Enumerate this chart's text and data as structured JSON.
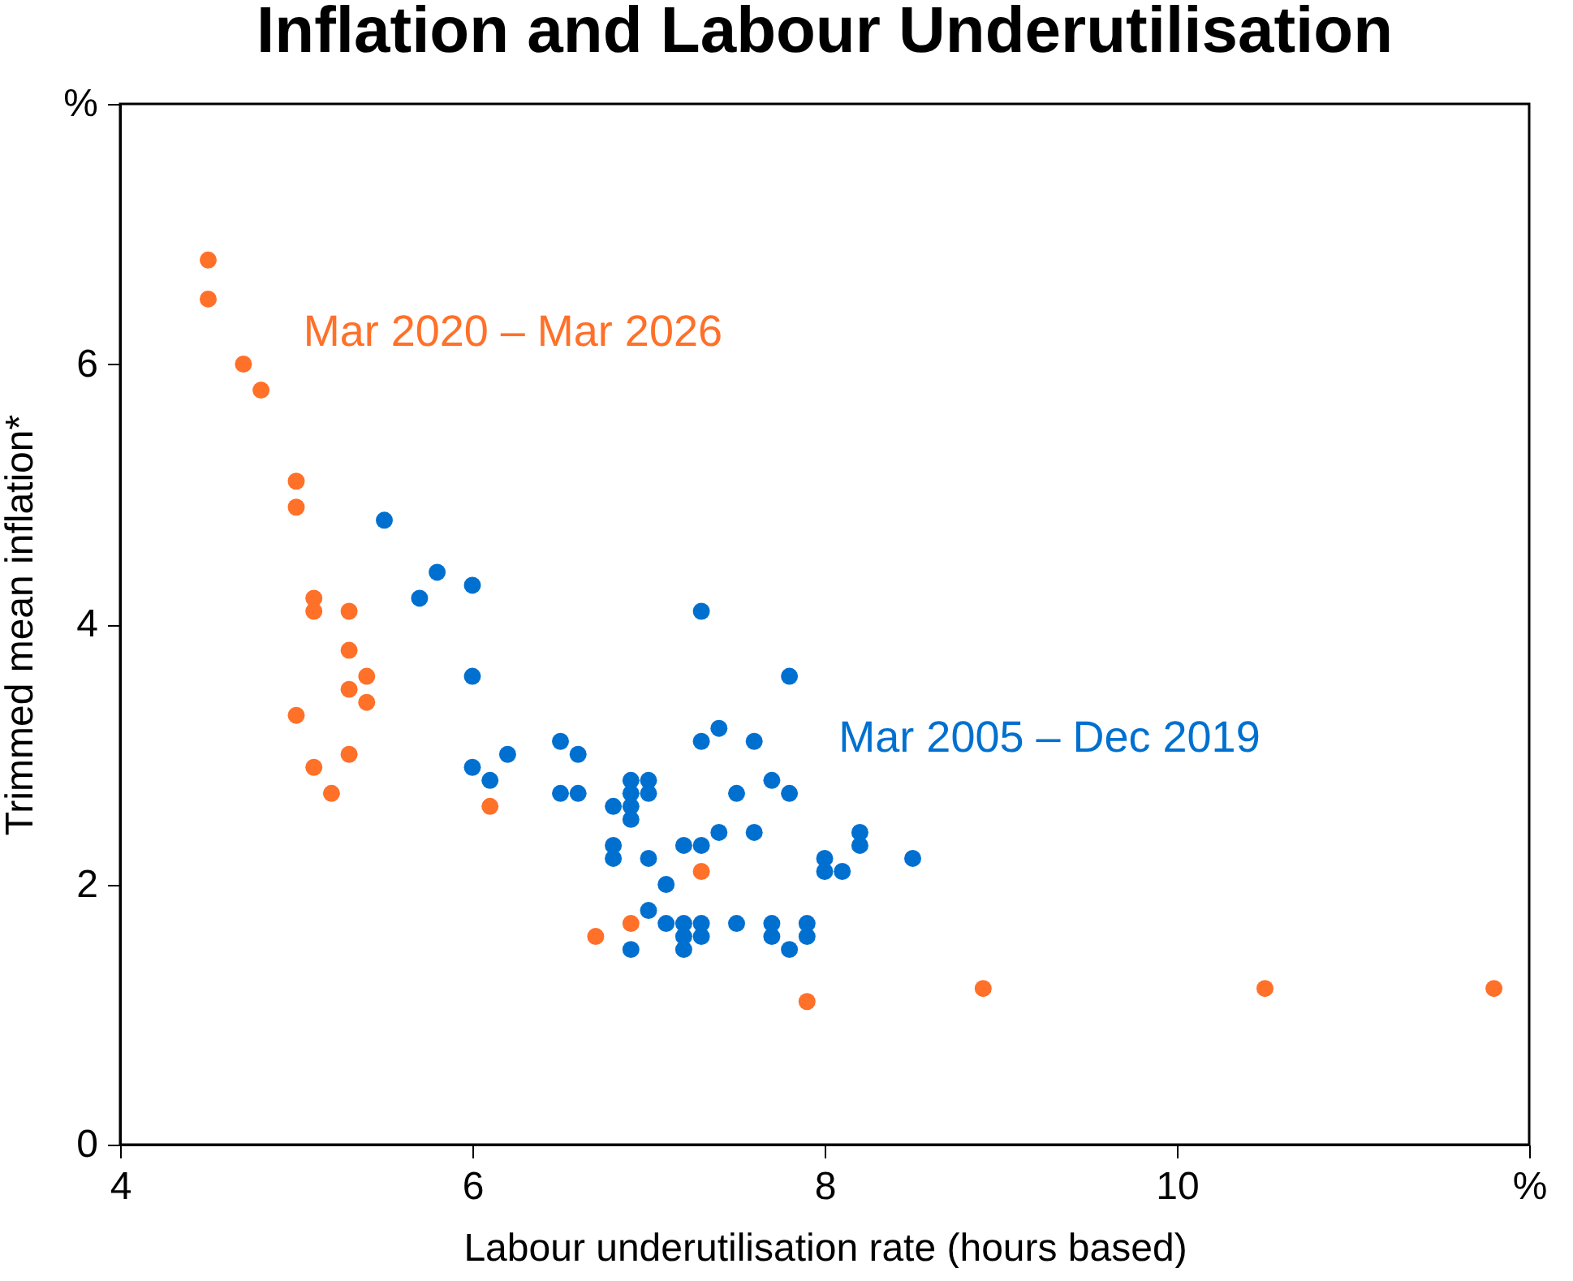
{
  "chart_data": {
    "type": "scatter",
    "title": "Inflation and Labour Underutilisation",
    "xlabel": "Labour underutilisation rate (hours based)",
    "ylabel": "Trimmed mean inflation*",
    "xlim": [
      4,
      12
    ],
    "xticks": [
      4,
      6,
      8,
      10,
      {
        "value": 12,
        "label": "%"
      }
    ],
    "ylim": [
      0,
      8
    ],
    "yticks": [
      0,
      2,
      4,
      6,
      {
        "value": 8,
        "label": "%"
      }
    ],
    "grid": false,
    "marker": "circle",
    "series": [
      {
        "name": "Mar 2005 – Dec 2019",
        "color": "#0070d0",
        "x": [
          5.5,
          5.8,
          5.7,
          6.0,
          6.0,
          6.0,
          6.1,
          6.2,
          6.5,
          6.6,
          6.5,
          6.6,
          6.8,
          6.9,
          6.9,
          6.9,
          6.9,
          7.0,
          7.0,
          6.8,
          6.8,
          7.0,
          7.2,
          7.3,
          7.1,
          7.0,
          6.9,
          7.1,
          7.2,
          7.2,
          7.2,
          7.3,
          7.3,
          7.5,
          7.3,
          7.3,
          7.4,
          7.5,
          7.6,
          7.4,
          7.6,
          7.7,
          7.8,
          7.8,
          7.7,
          7.7,
          7.8,
          7.9,
          7.9,
          8.0,
          8.0,
          8.1,
          8.2,
          8.2,
          8.5
        ],
        "values": [
          4.8,
          4.4,
          4.2,
          4.3,
          3.6,
          2.9,
          2.8,
          3.0,
          3.1,
          3.0,
          2.7,
          2.7,
          2.6,
          2.8,
          2.7,
          2.6,
          2.5,
          2.8,
          2.7,
          2.3,
          2.2,
          2.2,
          2.3,
          2.3,
          2.0,
          1.8,
          1.5,
          1.7,
          1.7,
          1.6,
          1.5,
          1.7,
          1.6,
          1.7,
          4.1,
          3.1,
          3.2,
          2.7,
          3.1,
          2.4,
          2.4,
          2.8,
          2.7,
          3.6,
          1.7,
          1.6,
          1.5,
          1.7,
          1.6,
          2.2,
          2.1,
          2.1,
          2.4,
          2.3,
          2.2
        ]
      },
      {
        "name": "Mar 2020 – Mar 2026",
        "color": "#ff7029",
        "x": [
          4.5,
          4.5,
          4.7,
          4.8,
          5.0,
          5.0,
          5.1,
          5.1,
          5.3,
          5.3,
          5.4,
          5.3,
          5.4,
          5.0,
          5.3,
          5.1,
          5.2,
          6.1,
          7.3,
          6.9,
          6.7,
          7.9,
          8.9,
          10.5,
          11.8
        ],
        "values": [
          6.8,
          6.5,
          6.0,
          5.8,
          5.1,
          4.9,
          4.2,
          4.1,
          4.1,
          3.8,
          3.6,
          3.5,
          3.4,
          3.3,
          3.0,
          2.9,
          2.7,
          2.6,
          2.1,
          1.7,
          1.6,
          1.1,
          1.2,
          1.2,
          1.2
        ]
      }
    ]
  }
}
